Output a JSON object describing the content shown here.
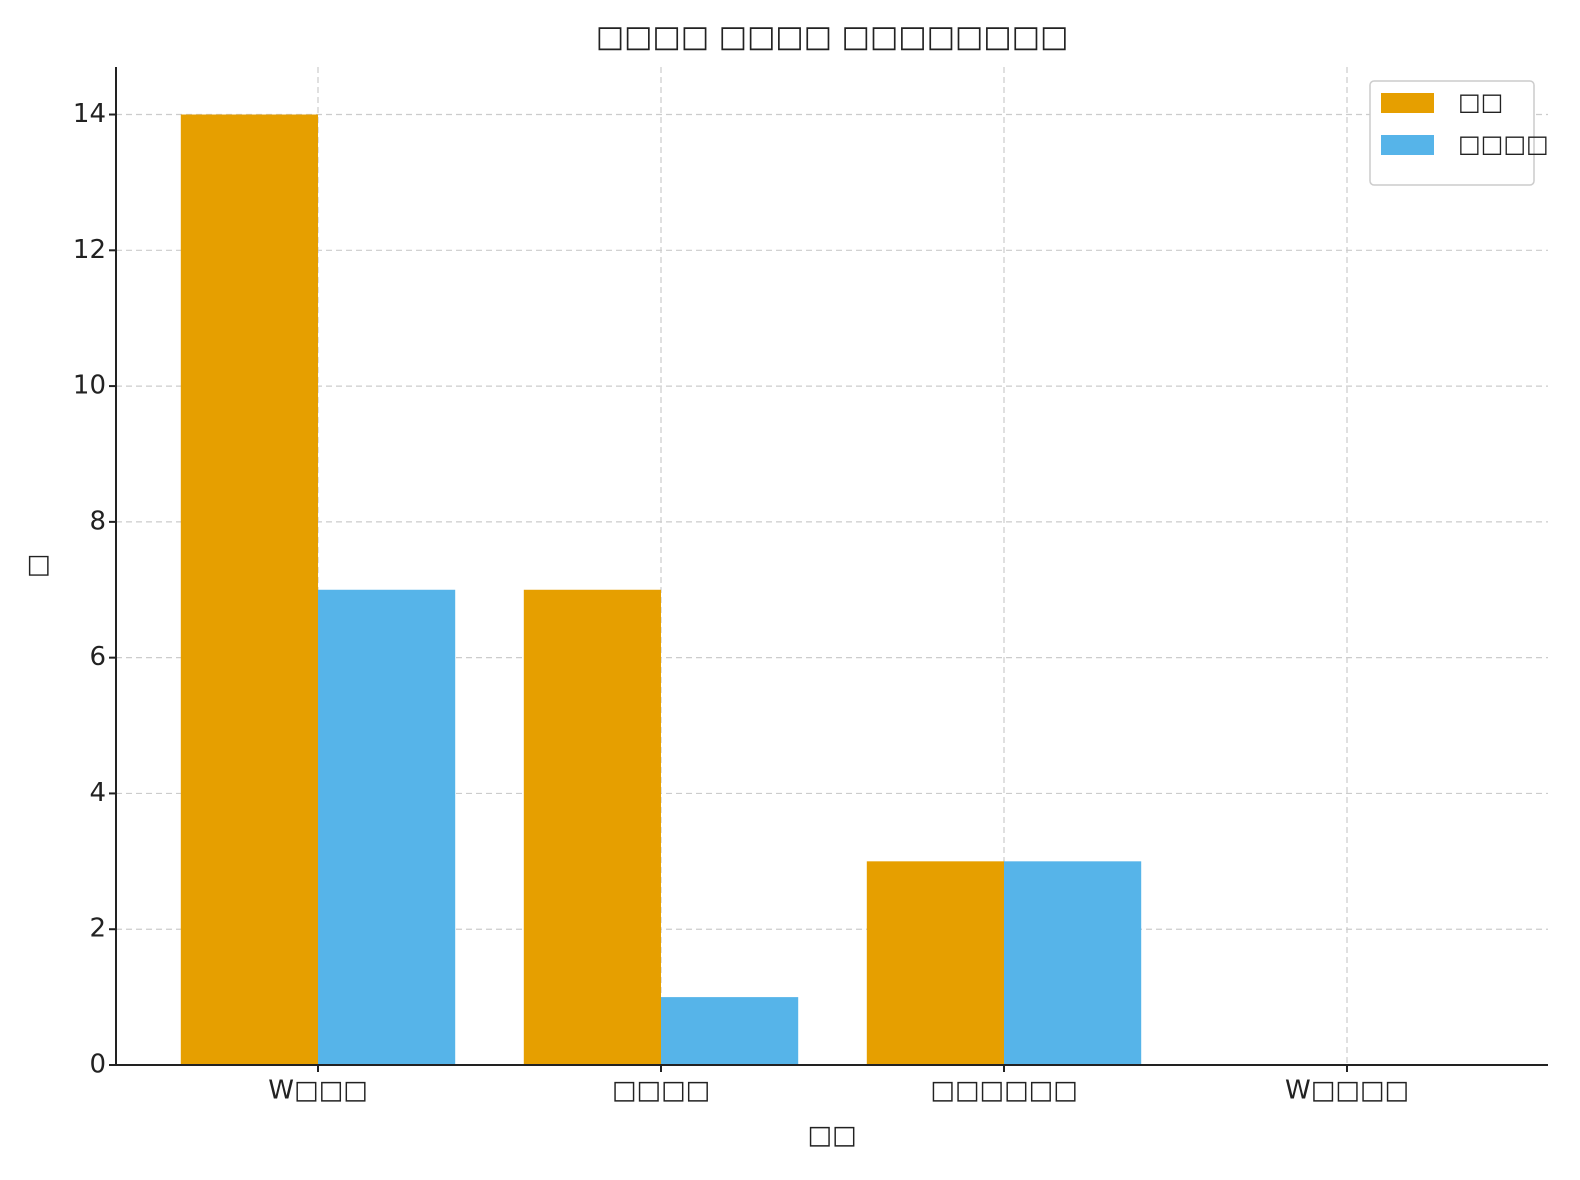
{
  "chart_data": {
    "type": "bar",
    "title": "□□□□ □□□□ □□□□□□□□",
    "x_label": "□□",
    "y_label": "□",
    "categories": [
      "W□□□",
      "□□□□",
      "□□□□□□",
      "W□□□□"
    ],
    "series": [
      {
        "name": "□□",
        "color": "#E69F00",
        "values": [
          14,
          7,
          3,
          0
        ]
      },
      {
        "name": "□□□□",
        "color": "#56B4E9",
        "values": [
          7,
          1,
          3,
          0
        ]
      }
    ],
    "ylim": [
      0,
      14.7
    ],
    "yticks": [
      0,
      2,
      4,
      6,
      8,
      10,
      12,
      14
    ],
    "grid": true,
    "legend": "upper right"
  }
}
